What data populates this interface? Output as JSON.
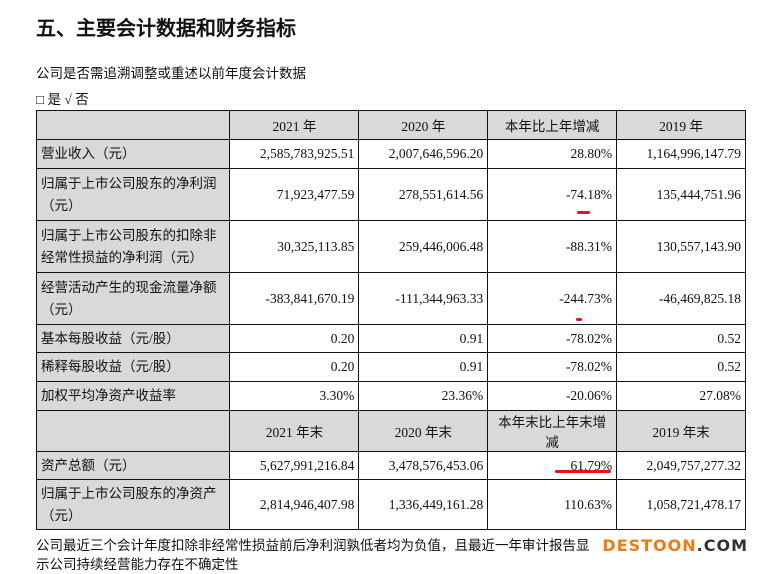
{
  "title": "五、主要会计数据和财务指标",
  "question": "公司是否需追溯调整或重述以前年度会计数据",
  "options": "□ 是 √ 否",
  "header1": [
    "",
    "2021 年",
    "2020 年",
    "本年比上年增减",
    "2019 年"
  ],
  "rows1": [
    [
      "营业收入（元）",
      "2,585,783,925.51",
      "2,007,646,596.20",
      "28.80%",
      "1,164,996,147.79"
    ],
    [
      "归属于上市公司股东的净利润（元）",
      "71,923,477.59",
      "278,551,614.56",
      "-74.18%",
      "135,444,751.96"
    ],
    [
      "归属于上市公司股东的扣除非经常性损益的净利润（元）",
      "30,325,113.85",
      "259,446,006.48",
      "-88.31%",
      "130,557,143.90"
    ],
    [
      "经营活动产生的现金流量净额（元）",
      "-383,841,670.19",
      "-111,344,963.33",
      "-244.73%",
      "-46,469,825.18"
    ],
    [
      "基本每股收益（元/股）",
      "0.20",
      "0.91",
      "-78.02%",
      "0.52"
    ],
    [
      "稀释每股收益（元/股）",
      "0.20",
      "0.91",
      "-78.02%",
      "0.52"
    ],
    [
      "加权平均净资产收益率",
      "3.30%",
      "23.36%",
      "-20.06%",
      "27.08%"
    ]
  ],
  "header2": [
    "",
    "2021 年末",
    "2020 年末",
    "本年末比上年末增减",
    "2019 年末"
  ],
  "rows2": [
    [
      "资产总额（元）",
      "5,627,991,216.84",
      "3,478,576,453.06",
      "61.79%",
      "2,049,757,277.32"
    ],
    [
      "归属于上市公司股东的净资产（元）",
      "2,814,946,407.98",
      "1,336,449,161.28",
      "110.63%",
      "1,058,721,478.17"
    ]
  ],
  "footer": "公司最近三个会计年度扣除非经常性损益前后净利润孰低者均为负值，且最近一年审计报告显示公司持续经营能力存在不确定性",
  "watermark": {
    "a": "DESTOON",
    ".b": ".COM"
  },
  "colors": {
    "header_bg": "#d9d9d9",
    "annotation": "#e0141a",
    "watermark": "#f07a10"
  }
}
